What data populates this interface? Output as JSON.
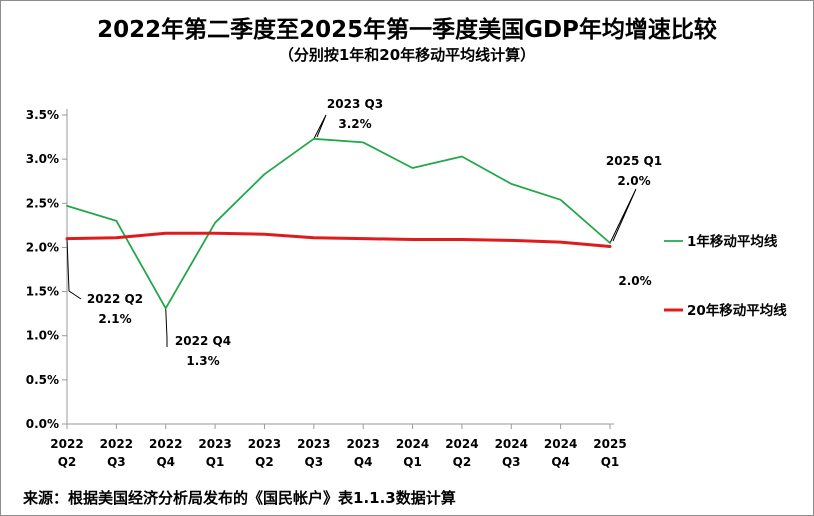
{
  "title": "2022年第二季度至2025年第一季度美国GDP年均增速比较",
  "subtitle": "（分别按1年和20年移动平均线计算）",
  "source": "来源：根据美国经济分析局发布的《国民帐户》表1.1.3数据计算",
  "chart_data": {
    "type": "line",
    "ylim": [
      0,
      3.5
    ],
    "yticks": [
      0,
      0.5,
      1.0,
      1.5,
      2.0,
      2.5,
      3.0,
      3.5
    ],
    "ytick_labels": [
      "0.0%",
      "0.5%",
      "1.0%",
      "1.5%",
      "2.0%",
      "2.5%",
      "3.0%",
      "3.5%"
    ],
    "categories": [
      {
        "year": "2022",
        "quarter": "Q2"
      },
      {
        "year": "2022",
        "quarter": "Q3"
      },
      {
        "year": "2022",
        "quarter": "Q4"
      },
      {
        "year": "2023",
        "quarter": "Q1"
      },
      {
        "year": "2023",
        "quarter": "Q2"
      },
      {
        "year": "2023",
        "quarter": "Q3"
      },
      {
        "year": "2023",
        "quarter": "Q4"
      },
      {
        "year": "2024",
        "quarter": "Q1"
      },
      {
        "year": "2024",
        "quarter": "Q2"
      },
      {
        "year": "2024",
        "quarter": "Q3"
      },
      {
        "year": "2024",
        "quarter": "Q4"
      },
      {
        "year": "2025",
        "quarter": "Q1"
      }
    ],
    "series": [
      {
        "name": "1年移动平均线",
        "color": "#22a84a",
        "values": [
          2.47,
          2.3,
          1.31,
          2.28,
          2.83,
          3.23,
          3.19,
          2.9,
          3.03,
          2.72,
          2.54,
          2.05
        ]
      },
      {
        "name": "20年移动平均线",
        "color": "#e01b1b",
        "values": [
          2.1,
          2.11,
          2.16,
          2.16,
          2.15,
          2.11,
          2.1,
          2.09,
          2.09,
          2.08,
          2.06,
          2.01
        ]
      }
    ],
    "annotations": [
      {
        "period": "2022 Q2",
        "value": "2.1%",
        "index": 0,
        "series": 1
      },
      {
        "period": "2022 Q4",
        "value": "1.3%",
        "index": 2,
        "series": 0
      },
      {
        "period": "2023 Q3",
        "value": "3.2%",
        "index": 5,
        "series": 0
      },
      {
        "period": "2025 Q1",
        "value": "2.0%",
        "index": 11,
        "series": 0
      },
      {
        "period": "",
        "value": "2.0%",
        "index": 11,
        "series": 1
      }
    ],
    "grid": false,
    "legend": "right"
  }
}
